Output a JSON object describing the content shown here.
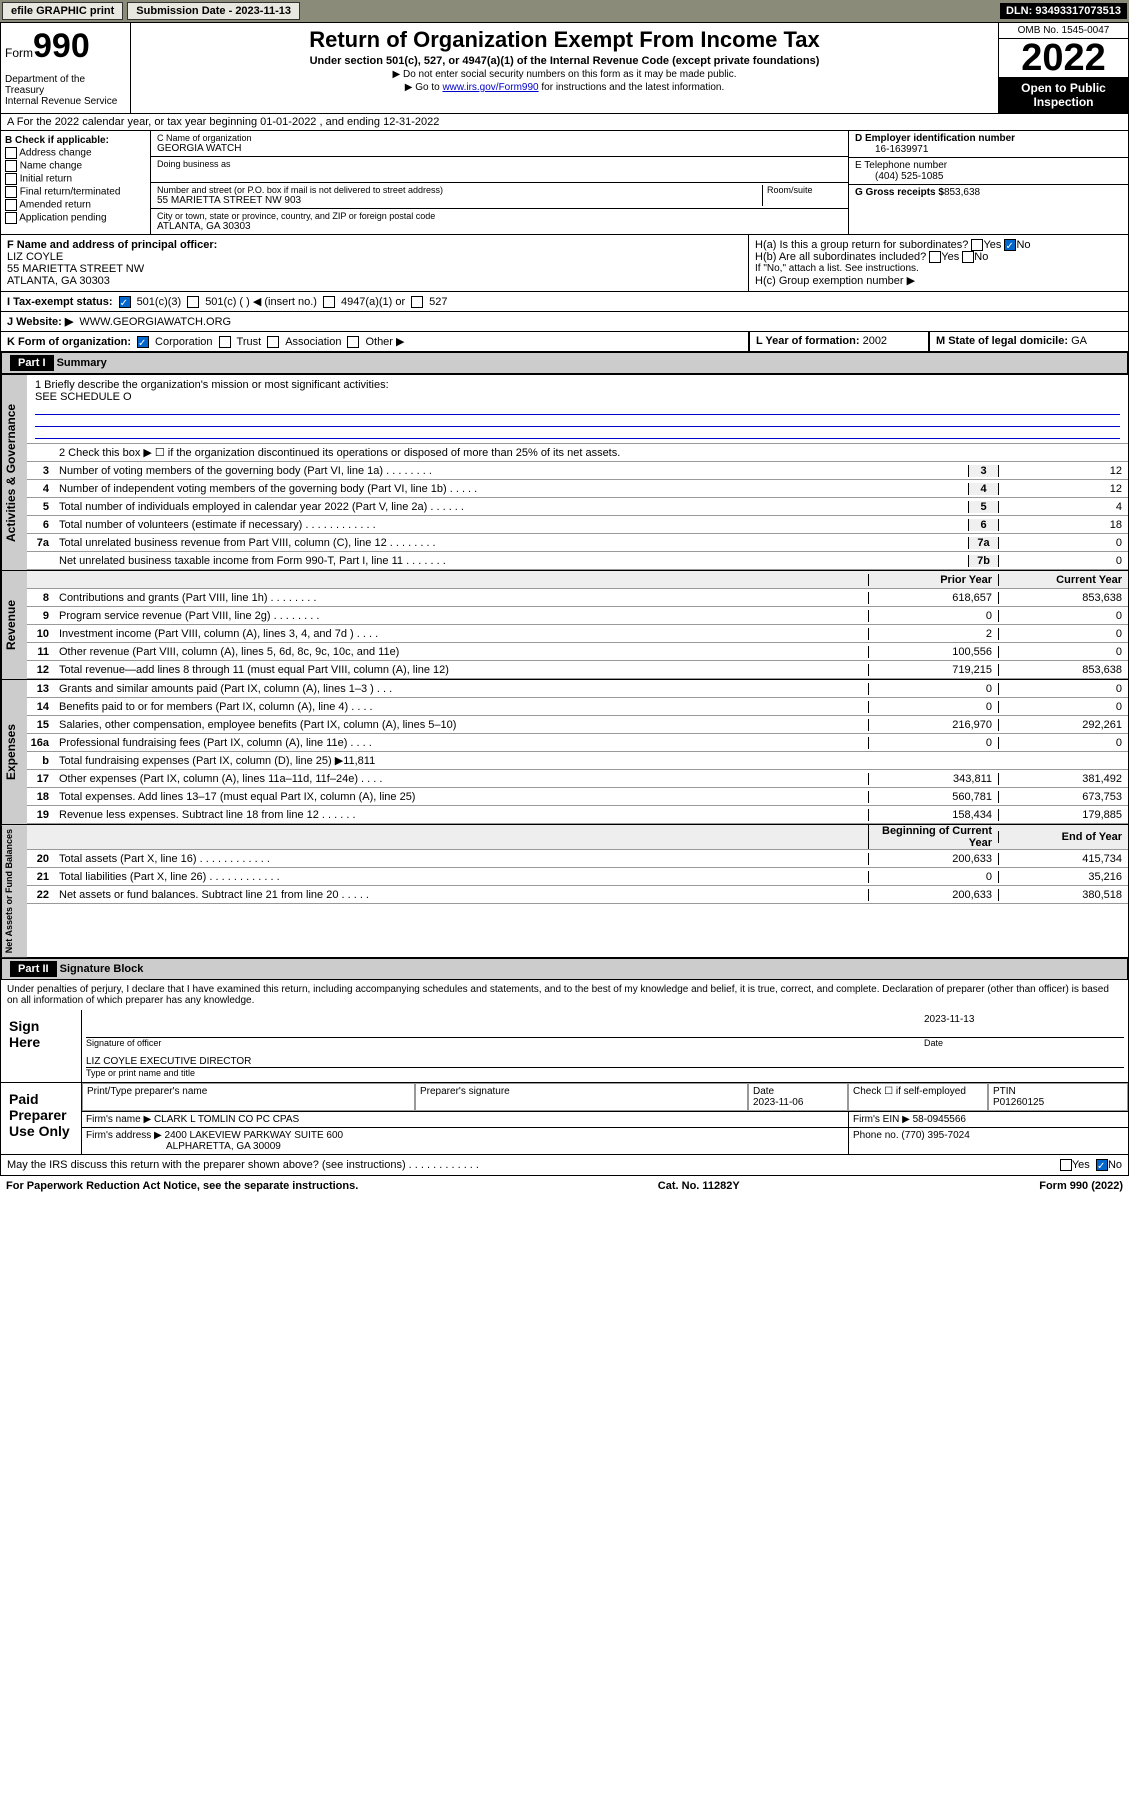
{
  "topbar": {
    "efile": "efile GRAPHIC print",
    "sub_label": "Submission Date - 2023-11-13",
    "dln": "DLN: 93493317073513"
  },
  "header": {
    "form": "Form",
    "form_no": "990",
    "title": "Return of Organization Exempt From Income Tax",
    "subtitle": "Under section 501(c), 527, or 4947(a)(1) of the Internal Revenue Code (except private foundations)",
    "note1": "▶ Do not enter social security numbers on this form as it may be made public.",
    "note2_pre": "▶ Go to ",
    "note2_link": "www.irs.gov/Form990",
    "note2_post": " for instructions and the latest information.",
    "dept": "Department of the Treasury\nInternal Revenue Service",
    "omb": "OMB No. 1545-0047",
    "year": "2022",
    "inspect": "Open to Public Inspection"
  },
  "row_a": "A For the 2022 calendar year, or tax year beginning 01-01-2022    , and ending 12-31-2022",
  "col_b": {
    "hdr": "B Check if applicable:",
    "opts": [
      "Address change",
      "Name change",
      "Initial return",
      "Final return/terminated",
      "Amended return",
      "Application pending"
    ]
  },
  "col_c": {
    "name_lbl": "C Name of organization",
    "name": "GEORGIA WATCH",
    "dba_lbl": "Doing business as",
    "addr_lbl": "Number and street (or P.O. box if mail is not delivered to street address)",
    "room_lbl": "Room/suite",
    "addr": "55 MARIETTA STREET NW 903",
    "city_lbl": "City or town, state or province, country, and ZIP or foreign postal code",
    "city": "ATLANTA, GA  30303"
  },
  "col_d": {
    "ein_lbl": "D Employer identification number",
    "ein": "16-1639971",
    "tel_lbl": "E Telephone number",
    "tel": "(404) 525-1085",
    "gross_lbl": "G Gross receipts $",
    "gross": "853,638"
  },
  "fgh": {
    "f_lbl": "F  Name and address of principal officer:",
    "f_name": "LIZ COYLE",
    "f_addr1": "55 MARIETTA STREET NW",
    "f_addr2": "ATLANTA, GA  30303",
    "ha": "H(a)  Is this a group return for subordinates?",
    "ha_yes": "Yes",
    "ha_no": "No",
    "hb": "H(b)  Are all subordinates included?",
    "hb_note": "If \"No,\" attach a list. See instructions.",
    "hc": "H(c)  Group exemption number ▶"
  },
  "row_i": {
    "lbl": "I    Tax-exempt status:",
    "o1": "501(c)(3)",
    "o2": "501(c) (  ) ◀ (insert no.)",
    "o3": "4947(a)(1) or",
    "o4": "527"
  },
  "row_j": {
    "lbl": "J    Website: ▶",
    "val": "WWW.GEORGIAWATCH.ORG"
  },
  "row_k": {
    "lbl": "K Form of organization:",
    "o1": "Corporation",
    "o2": "Trust",
    "o3": "Association",
    "o4": "Other ▶"
  },
  "row_l": {
    "lbl": "L Year of formation:",
    "val": "2002"
  },
  "row_m": {
    "lbl": "M State of legal domicile:",
    "val": "GA"
  },
  "part1": {
    "hdr": "Part I",
    "title": "Summary",
    "q1": "1   Briefly describe the organization's mission or most significant activities:",
    "q1v": "SEE SCHEDULE O",
    "q2": "2    Check this box ▶ ☐  if the organization discontinued its operations or disposed of more than 25% of its net assets.",
    "tabs": {
      "gov": "Activities & Governance",
      "rev": "Revenue",
      "exp": "Expenses",
      "net": "Net Assets or Fund Balances"
    },
    "col_prior": "Prior Year",
    "col_curr": "Current Year",
    "col_beg": "Beginning of Current Year",
    "col_end": "End of Year",
    "lines_gov": [
      {
        "n": "3",
        "d": "Number of voting members of the governing body (Part VI, line 1a)   .    .    .    .    .    .    .    .",
        "b": "3",
        "v": "12"
      },
      {
        "n": "4",
        "d": "Number of independent voting members of the governing body (Part VI, line 1b)   .    .    .    .    .",
        "b": "4",
        "v": "12"
      },
      {
        "n": "5",
        "d": "Total number of individuals employed in calendar year 2022 (Part V, line 2a)    .    .    .    .    .    .",
        "b": "5",
        "v": "4"
      },
      {
        "n": "6",
        "d": "Total number of volunteers (estimate if necessary)    .    .    .    .    .    .    .    .    .    .    .    .",
        "b": "6",
        "v": "18"
      },
      {
        "n": "7a",
        "d": "Total unrelated business revenue from Part VIII, column (C), line 12   .    .    .    .    .    .    .    .",
        "b": "7a",
        "v": "0"
      },
      {
        "n": "",
        "d": "Net unrelated business taxable income from Form 990-T, Part I, line 11   .    .    .    .    .    .    .",
        "b": "7b",
        "v": "0"
      }
    ],
    "lines_rev": [
      {
        "n": "8",
        "d": "Contributions and grants (Part VIII, line 1h)   .    .    .    .    .    .    .    .",
        "p": "618,657",
        "c": "853,638"
      },
      {
        "n": "9",
        "d": "Program service revenue (Part VIII, line 2g)    .    .    .    .    .    .    .    .",
        "p": "0",
        "c": "0"
      },
      {
        "n": "10",
        "d": "Investment income (Part VIII, column (A), lines 3, 4, and 7d )   .    .    .    .",
        "p": "2",
        "c": "0"
      },
      {
        "n": "11",
        "d": "Other revenue (Part VIII, column (A), lines 5, 6d, 8c, 9c, 10c, and 11e)",
        "p": "100,556",
        "c": "0"
      },
      {
        "n": "12",
        "d": "Total revenue—add lines 8 through 11 (must equal Part VIII, column (A), line 12)",
        "p": "719,215",
        "c": "853,638"
      }
    ],
    "lines_exp": [
      {
        "n": "13",
        "d": "Grants and similar amounts paid (Part IX, column (A), lines 1–3 )   .    .    .",
        "p": "0",
        "c": "0"
      },
      {
        "n": "14",
        "d": "Benefits paid to or for members (Part IX, column (A), line 4)   .    .    .    .",
        "p": "0",
        "c": "0"
      },
      {
        "n": "15",
        "d": "Salaries, other compensation, employee benefits (Part IX, column (A), lines 5–10)",
        "p": "216,970",
        "c": "292,261"
      },
      {
        "n": "16a",
        "d": "Professional fundraising fees (Part IX, column (A), line 11e)   .    .    .    .",
        "p": "0",
        "c": "0"
      },
      {
        "n": "b",
        "d": "Total fundraising expenses (Part IX, column (D), line 25) ▶11,811",
        "p": "",
        "c": ""
      },
      {
        "n": "17",
        "d": "Other expenses (Part IX, column (A), lines 11a–11d, 11f–24e)   .    .    .    .",
        "p": "343,811",
        "c": "381,492"
      },
      {
        "n": "18",
        "d": "Total expenses. Add lines 13–17 (must equal Part IX, column (A), line 25)",
        "p": "560,781",
        "c": "673,753"
      },
      {
        "n": "19",
        "d": "Revenue less expenses. Subtract line 18 from line 12   .    .    .    .    .    .",
        "p": "158,434",
        "c": "179,885"
      }
    ],
    "lines_net": [
      {
        "n": "20",
        "d": "Total assets (Part X, line 16)   .    .    .    .    .    .    .    .    .    .    .    .",
        "p": "200,633",
        "c": "415,734"
      },
      {
        "n": "21",
        "d": "Total liabilities (Part X, line 26)   .    .    .    .    .    .    .    .    .    .    .    .",
        "p": "0",
        "c": "35,216"
      },
      {
        "n": "22",
        "d": "Net assets or fund balances. Subtract line 21 from line 20   .    .    .    .    .",
        "p": "200,633",
        "c": "380,518"
      }
    ]
  },
  "part2": {
    "hdr": "Part II",
    "title": "Signature Block",
    "decl": "Under penalties of perjury, I declare that I have examined this return, including accompanying schedules and statements, and to the best of my knowledge and belief, it is true, correct, and complete. Declaration of preparer (other than officer) is based on all information of which preparer has any knowledge.",
    "sign_here": "Sign Here",
    "sig_lbl": "Signature of officer",
    "date_lbl": "Date",
    "sig_date": "2023-11-13",
    "name_title": "LIZ COYLE  EXECUTIVE DIRECTOR",
    "name_title_lbl": "Type or print name and title",
    "paid": "Paid Preparer Use Only",
    "prep_name_lbl": "Print/Type preparer's name",
    "prep_sig_lbl": "Preparer's signature",
    "prep_date_lbl": "Date",
    "prep_date": "2023-11-06",
    "self_emp": "Check ☐ if self-employed",
    "ptin_lbl": "PTIN",
    "ptin": "P01260125",
    "firm_name_lbl": "Firm's name    ▶",
    "firm_name": "CLARK L TOMLIN CO PC CPAS",
    "firm_ein_lbl": "Firm's EIN ▶",
    "firm_ein": "58-0945566",
    "firm_addr_lbl": "Firm's address ▶",
    "firm_addr1": "2400 LAKEVIEW PARKWAY SUITE 600",
    "firm_addr2": "ALPHARETTA, GA  30009",
    "phone_lbl": "Phone no.",
    "phone": "(770) 395-7024",
    "discuss": "May the IRS discuss this return with the preparer shown above? (see instructions)   .    .    .    .    .    .    .    .    .    .    .    .",
    "yes": "Yes",
    "no": "No"
  },
  "footer": {
    "left": "For Paperwork Reduction Act Notice, see the separate instructions.",
    "mid": "Cat. No. 11282Y",
    "right": "Form 990 (2022)"
  }
}
